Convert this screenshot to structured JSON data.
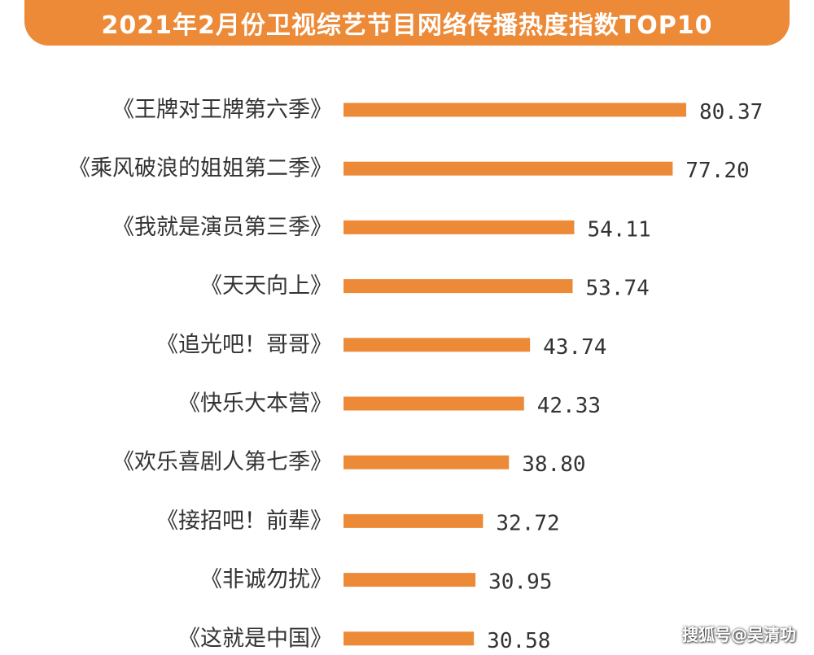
{
  "header": {
    "title": "2021年2月份卫视综艺节目网络传播热度指数TOP10"
  },
  "watermark": "搜狐号@吴清功",
  "colors": {
    "accent": "#ec8a38",
    "bar": "#ec8a38",
    "text": "#333333"
  },
  "chart_data": {
    "type": "bar",
    "orientation": "horizontal",
    "title": "2021年2月份卫视综艺节目网络传播热度指数TOP10",
    "categories": [
      "《王牌对王牌第六季》",
      "《乘风破浪的姐姐第二季》",
      "《我就是演员第三季》",
      "《天天向上》",
      "《追光吧！哥哥》",
      "《快乐大本营》",
      "《欢乐喜剧人第七季》",
      "《接招吧！前辈》",
      "《非诚勿扰》",
      "《这就是中国》"
    ],
    "values": [
      80.37,
      77.2,
      54.11,
      53.74,
      43.74,
      42.33,
      38.8,
      32.72,
      30.95,
      30.58
    ],
    "value_labels": [
      "80.37",
      "77.20",
      "54.11",
      "53.74",
      "43.74",
      "42.33",
      "38.80",
      "32.72",
      "30.95",
      "30.58"
    ],
    "xlim": [
      0,
      80.37
    ],
    "grid": false,
    "legend": "none"
  }
}
